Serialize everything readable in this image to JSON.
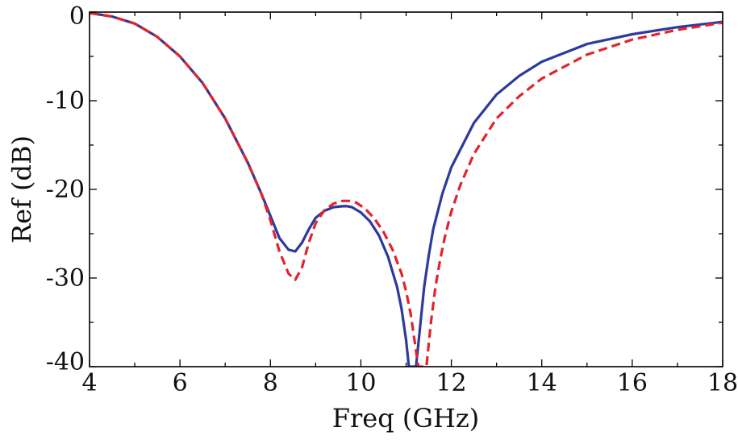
{
  "chart_data": {
    "type": "line",
    "title": "",
    "xlabel": "Freq (GHz)",
    "ylabel": "Ref (dB)",
    "xlim": [
      4,
      18
    ],
    "ylim": [
      -40,
      0
    ],
    "x_ticks": [
      4,
      6,
      8,
      10,
      12,
      14,
      16,
      18
    ],
    "x_tick_labels": [
      "4",
      "6",
      "8",
      "10",
      "12",
      "14",
      "16",
      "18"
    ],
    "y_ticks": [
      0,
      -10,
      -20,
      -30,
      -40
    ],
    "y_tick_labels": [
      "0",
      "-10",
      "-20",
      "-30",
      "-40"
    ],
    "grid": false,
    "legend": "none",
    "series": [
      {
        "style": "solid",
        "color": "#2b3a9c",
        "x": [
          4.0,
          4.5,
          5.0,
          5.5,
          6.0,
          6.5,
          7.0,
          7.5,
          7.8,
          8.0,
          8.2,
          8.4,
          8.55,
          8.7,
          8.85,
          9.0,
          9.2,
          9.4,
          9.6,
          9.7,
          9.8,
          10.0,
          10.2,
          10.4,
          10.6,
          10.8,
          10.9,
          11.0,
          11.06,
          11.22,
          11.3,
          11.4,
          11.5,
          11.6,
          11.8,
          12.0,
          12.5,
          13.0,
          13.5,
          14.0,
          15.0,
          16.0,
          17.0,
          18.0
        ],
        "y": [
          -0.1,
          -0.5,
          -1.3,
          -2.8,
          -5.0,
          -8.0,
          -12.0,
          -17.0,
          -20.5,
          -23.0,
          -25.5,
          -26.8,
          -27.0,
          -26.0,
          -24.5,
          -23.2,
          -22.4,
          -22.0,
          -21.9,
          -21.9,
          -22.0,
          -22.6,
          -23.6,
          -25.2,
          -27.6,
          -31.0,
          -33.5,
          -37.0,
          -40.0,
          -40.0,
          -36.0,
          -31.0,
          -27.5,
          -24.5,
          -20.5,
          -17.5,
          -12.5,
          -9.3,
          -7.2,
          -5.6,
          -3.6,
          -2.5,
          -1.7,
          -1.1
        ]
      },
      {
        "style": "dashed",
        "color": "#e3232c",
        "x": [
          4.0,
          4.5,
          5.0,
          5.5,
          6.0,
          6.5,
          7.0,
          7.5,
          7.8,
          8.0,
          8.2,
          8.4,
          8.55,
          8.7,
          8.85,
          9.0,
          9.2,
          9.4,
          9.6,
          9.75,
          9.9,
          10.1,
          10.3,
          10.5,
          10.7,
          10.9,
          11.0,
          11.1,
          11.2,
          11.27,
          11.45,
          11.55,
          11.65,
          11.75,
          11.85,
          12.0,
          12.2,
          12.5,
          13.0,
          13.5,
          14.0,
          15.0,
          16.0,
          17.0,
          18.0
        ],
        "y": [
          -0.1,
          -0.5,
          -1.3,
          -2.8,
          -5.0,
          -8.0,
          -12.0,
          -17.0,
          -20.5,
          -23.5,
          -27.0,
          -29.5,
          -30.2,
          -28.8,
          -26.0,
          -23.8,
          -22.3,
          -21.6,
          -21.3,
          -21.3,
          -21.5,
          -22.2,
          -23.3,
          -24.8,
          -26.8,
          -29.5,
          -31.5,
          -34.0,
          -37.5,
          -40.0,
          -40.0,
          -35.0,
          -31.0,
          -28.0,
          -25.5,
          -22.5,
          -19.5,
          -16.0,
          -12.0,
          -9.5,
          -7.5,
          -4.8,
          -3.1,
          -2.0,
          -1.2
        ]
      }
    ]
  }
}
